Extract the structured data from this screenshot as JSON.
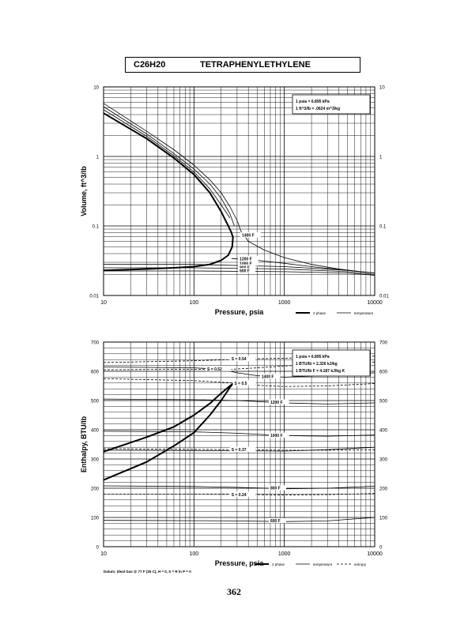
{
  "header": {
    "formula": "C26H20",
    "compound": "TETRAPHENYLETHYLENE"
  },
  "page_number": "362",
  "chart_data": [
    {
      "type": "line",
      "title": "",
      "xlabel": "Pressure,  psia",
      "ylabel": "Volume, ft^3/lb",
      "xscale": "log",
      "yscale": "log",
      "xlim": [
        10,
        10000
      ],
      "ylim": [
        0.01,
        10
      ],
      "grid": true,
      "x_ticks": [
        "10",
        "100",
        "1000",
        "10000"
      ],
      "y_ticks": [
        "0.01",
        "0.1",
        "1",
        "10"
      ],
      "y_ticks_right": [
        "0.01",
        "0.1",
        "1",
        "10"
      ],
      "conversion_box": [
        "1 psia  =  6.895 kPa",
        "1 ft^3/lb  =  .0624 m^3/kg"
      ],
      "legend": [
        "2 phase",
        "temperature"
      ],
      "legend_position": "bottom-right",
      "series": [
        {
          "name": "2 phase",
          "style": "thick",
          "x": [
            10,
            30,
            60,
            100,
            150,
            200,
            240,
            260,
            270,
            265,
            240,
            200,
            150,
            100,
            60,
            30,
            10
          ],
          "y": [
            4.2,
            1.8,
            0.95,
            0.55,
            0.3,
            0.16,
            0.1,
            0.08,
            0.068,
            0.05,
            0.038,
            0.032,
            0.028,
            0.026,
            0.025,
            0.024,
            0.023
          ]
        },
        {
          "name": "1400 F",
          "style": "thin",
          "x": [
            10,
            30,
            60,
            100,
            150,
            200,
            250,
            300,
            330,
            400,
            600,
            1000,
            2000,
            4000,
            7000,
            10000
          ],
          "y": [
            5.8,
            2.3,
            1.25,
            0.75,
            0.46,
            0.3,
            0.19,
            0.12,
            0.085,
            0.06,
            0.045,
            0.035,
            0.028,
            0.024,
            0.022,
            0.021
          ]
        },
        {
          "name": "",
          "style": "thin",
          "x": [
            10,
            30,
            60,
            100,
            150,
            200,
            250,
            280
          ],
          "y": [
            5.2,
            2.1,
            1.1,
            0.66,
            0.4,
            0.25,
            0.15,
            0.1
          ]
        },
        {
          "name": "",
          "style": "thin",
          "x": [
            10,
            30,
            60,
            100,
            150,
            200,
            250
          ],
          "y": [
            4.7,
            1.95,
            1.02,
            0.6,
            0.34,
            0.2,
            0.13
          ]
        },
        {
          "name": "1200 F",
          "style": "thin",
          "x": [
            260,
            500,
            1000,
            2000,
            5000,
            10000
          ],
          "y": [
            0.034,
            0.032,
            0.029,
            0.026,
            0.023,
            0.021
          ]
        },
        {
          "name": "1000 F",
          "style": "thin",
          "x": [
            10,
            100,
            1000,
            5000,
            10000
          ],
          "y": [
            0.028,
            0.028,
            0.026,
            0.023,
            0.021
          ]
        },
        {
          "name": "800 F",
          "style": "thin",
          "x": [
            10,
            100,
            1000,
            5000,
            10000
          ],
          "y": [
            0.025,
            0.025,
            0.024,
            0.022,
            0.02
          ]
        },
        {
          "name": "600 F",
          "style": "thin",
          "x": [
            10,
            100,
            1000,
            5000,
            10000
          ],
          "y": [
            0.0225,
            0.0225,
            0.022,
            0.021,
            0.0195
          ]
        }
      ],
      "curve_labels": [
        {
          "text": "1400 F",
          "x": 340,
          "y": 0.072
        },
        {
          "text": "1200 F",
          "x": 320,
          "y": 0.033
        },
        {
          "text": "1000 F",
          "x": 320,
          "y": 0.028
        },
        {
          "text": "800 F",
          "x": 320,
          "y": 0.0248
        },
        {
          "text": "600 F",
          "x": 320,
          "y": 0.0222
        }
      ]
    },
    {
      "type": "line",
      "title": "",
      "xlabel": "Pressure,  psia",
      "ylabel": "Enthalpy, BTU/lb",
      "xscale": "log",
      "yscale": "linear",
      "xlim": [
        10,
        10000
      ],
      "ylim": [
        0,
        700
      ],
      "grid": true,
      "x_ticks": [
        "10",
        "100",
        "1000",
        "10000"
      ],
      "y_ticks": [
        "0",
        "100",
        "200",
        "300",
        "400",
        "500",
        "600",
        "700"
      ],
      "y_ticks_right": [
        "0",
        "100",
        "200",
        "300",
        "400",
        "500",
        "600",
        "700"
      ],
      "conversion_box": [
        "1 psia  =  6.895 kPa",
        "1 BTU/lb  =  2.326 kJ/kg",
        "1 BTU/lb F  =  4.187 kJ/kg K"
      ],
      "legend": [
        "2 phase",
        "temperature",
        "entropy"
      ],
      "legend_position": "bottom-right",
      "footnote": "Datum: Ideal Gas @ 77 F (25 C),  H = 0,  S = R ln P = 0",
      "series": [
        {
          "name": "2 phase upper",
          "style": "thick",
          "x": [
            10,
            30,
            60,
            100,
            150,
            200,
            250,
            270
          ],
          "y": [
            325,
            375,
            410,
            450,
            490,
            525,
            550,
            558
          ]
        },
        {
          "name": "2 phase lower",
          "style": "thick",
          "x": [
            10,
            30,
            60,
            100,
            150,
            200,
            250,
            270
          ],
          "y": [
            228,
            290,
            345,
            390,
            450,
            500,
            545,
            558
          ]
        },
        {
          "name": "1400 F",
          "style": "thin",
          "x": [
            10,
            100,
            200,
            300,
            500,
            1000,
            3000,
            10000
          ],
          "y": [
            615,
            612,
            607,
            595,
            585,
            580,
            585,
            595
          ]
        },
        {
          "name": "1200 F",
          "style": "thin",
          "x": [
            10,
            100,
            300,
            1000,
            3000,
            10000
          ],
          "y": [
            505,
            503,
            500,
            492,
            488,
            492
          ]
        },
        {
          "name": "1000 F",
          "style": "thin",
          "x": [
            10,
            100,
            300,
            1000,
            3000,
            10000
          ],
          "y": [
            395,
            393,
            388,
            380,
            378,
            382
          ]
        },
        {
          "name": "",
          "style": "thin",
          "x": [
            10,
            100,
            300,
            1000,
            3000,
            10000
          ],
          "y": [
            330,
            329,
            328,
            327,
            332,
            340
          ]
        },
        {
          "name": "800 F",
          "style": "thin",
          "x": [
            10,
            100,
            300,
            1000,
            3000,
            10000
          ],
          "y": [
            208,
            206,
            203,
            198,
            200,
            207
          ]
        },
        {
          "name": "600 F",
          "style": "thin",
          "x": [
            10,
            100,
            300,
            1000,
            3000,
            10000
          ],
          "y": [
            90,
            89,
            88,
            86,
            88,
            100
          ]
        },
        {
          "name": "S=0.54",
          "style": "dashed",
          "x": [
            10,
            100,
            250,
            500,
            1000,
            3000,
            10000
          ],
          "y": [
            630,
            636,
            640,
            643,
            645,
            648,
            652
          ]
        },
        {
          "name": "S=0.52",
          "style": "dashed",
          "x": [
            10,
            100,
            210,
            500,
            1000,
            3000,
            10000
          ],
          "y": [
            605,
            607,
            605,
            612,
            618,
            625,
            632
          ]
        },
        {
          "name": "S=0.5",
          "style": "dashed",
          "x": [
            10,
            100,
            280,
            500,
            1000,
            3000,
            10000
          ],
          "y": [
            575,
            568,
            560,
            552,
            548,
            550,
            558
          ]
        },
        {
          "name": "S=0.37",
          "style": "dashed",
          "x": [
            10,
            100,
            280,
            500,
            1000,
            3000,
            10000
          ],
          "y": [
            335,
            333,
            332,
            331,
            330,
            330,
            332
          ]
        },
        {
          "name": "S=0.24",
          "style": "dashed",
          "x": [
            10,
            100,
            280,
            500,
            1000,
            3000,
            10000
          ],
          "y": [
            180,
            180,
            179,
            178,
            177,
            178,
            182
          ]
        }
      ],
      "curve_labels": [
        {
          "text": "S = 0.54",
          "x": 260,
          "y": 640
        },
        {
          "text": "S = 0.52",
          "x": 140,
          "y": 606
        },
        {
          "text": "1400 F",
          "x": 560,
          "y": 580
        },
        {
          "text": "S = 0.5",
          "x": 280,
          "y": 557
        },
        {
          "text": "1200 F",
          "x": 700,
          "y": 492
        },
        {
          "text": "S = 0.37",
          "x": 260,
          "y": 330
        },
        {
          "text": "1000 F",
          "x": 700,
          "y": 378
        },
        {
          "text": "800 F",
          "x": 700,
          "y": 198
        },
        {
          "text": "S = 0.24",
          "x": 260,
          "y": 176
        },
        {
          "text": "600 F",
          "x": 700,
          "y": 86
        }
      ]
    }
  ]
}
